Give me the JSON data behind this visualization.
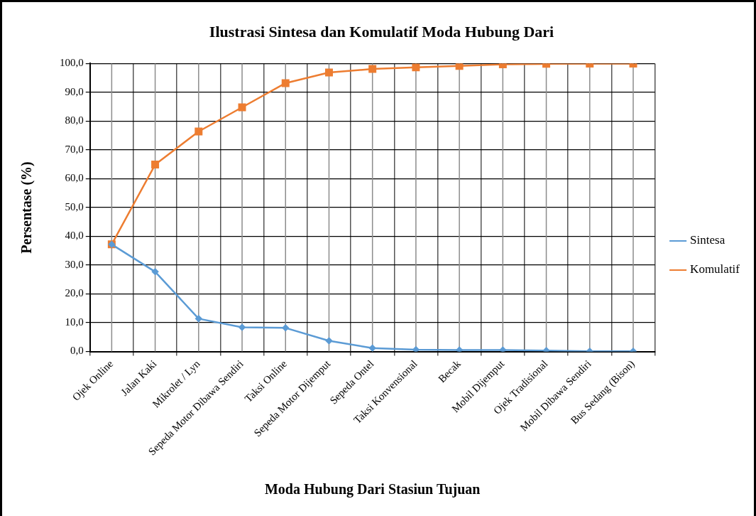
{
  "chart_data": {
    "type": "line",
    "title": "Ilustrasi Sintesa dan Komulatif Moda Hubung Dari",
    "xlabel": "Moda Hubung Dari Stasiun Tujuan",
    "ylabel": "Persentase (%)",
    "categories": [
      "Ojek Online",
      "Jalan Kaki",
      "Mikrolet / Lyn",
      "Sepeda Motor Dibawa Sendiri",
      "Taksi Online",
      "Sepeda Motor Dijemput",
      "Sepeda Ontel",
      "Taksi Konvensional",
      "Becak",
      "Mobil Dijemput",
      "Ojek Tradisional",
      "Mobil Dibawa Sendiri",
      "Bus Sedang (Bison)"
    ],
    "series": [
      {
        "name": "Sintesa",
        "color": "#5b9bd5",
        "marker": "diamond",
        "values": [
          37.2,
          27.7,
          11.4,
          8.4,
          8.2,
          3.7,
          1.2,
          0.6,
          0.5,
          0.5,
          0.3,
          0.1,
          0.1
        ]
      },
      {
        "name": "Komulatif",
        "color": "#ed7d31",
        "marker": "square",
        "values": [
          37.2,
          64.9,
          76.4,
          84.8,
          93.2,
          96.9,
          98.1,
          98.7,
          99.2,
          99.7,
          99.9,
          100.0,
          100.0
        ]
      }
    ],
    "ylim": [
      0,
      100
    ],
    "yticks": [
      {
        "value": 0,
        "label": "0,0"
      },
      {
        "value": 10,
        "label": "10,0"
      },
      {
        "value": 20,
        "label": "20,0"
      },
      {
        "value": 30,
        "label": "30,0"
      },
      {
        "value": 40,
        "label": "40,0"
      },
      {
        "value": 50,
        "label": "50,0"
      },
      {
        "value": 60,
        "label": "60,0"
      },
      {
        "value": 70,
        "label": "70,0"
      },
      {
        "value": 80,
        "label": "80,0"
      },
      {
        "value": 90,
        "label": "90,0"
      },
      {
        "value": 100,
        "label": "100,0"
      }
    ],
    "grid": true,
    "legend": "right",
    "line_style": "solid"
  }
}
